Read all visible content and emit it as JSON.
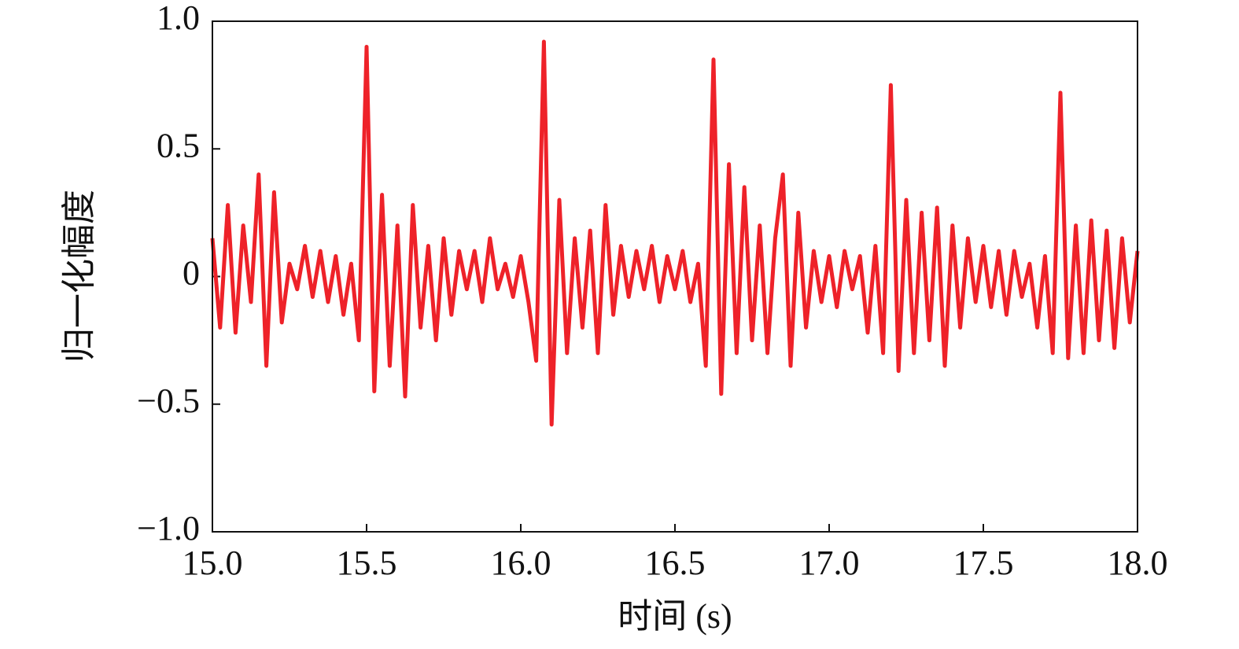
{
  "chart_data": {
    "type": "line",
    "xlabel": "时间 (s)",
    "ylabel": "归一化幅度",
    "x": [
      15.0,
      15.025,
      15.05,
      15.075,
      15.1,
      15.125,
      15.15,
      15.175,
      15.2,
      15.225,
      15.25,
      15.275,
      15.3,
      15.325,
      15.35,
      15.375,
      15.4,
      15.425,
      15.45,
      15.475,
      15.5,
      15.525,
      15.55,
      15.575,
      15.6,
      15.625,
      15.65,
      15.675,
      15.7,
      15.725,
      15.75,
      15.775,
      15.8,
      15.825,
      15.85,
      15.875,
      15.9,
      15.925,
      15.95,
      15.975,
      16.0,
      16.025,
      16.05,
      16.075,
      16.1,
      16.125,
      16.15,
      16.175,
      16.2,
      16.225,
      16.25,
      16.275,
      16.3,
      16.325,
      16.35,
      16.375,
      16.4,
      16.425,
      16.45,
      16.475,
      16.5,
      16.525,
      16.55,
      16.575,
      16.6,
      16.625,
      16.65,
      16.675,
      16.7,
      16.725,
      16.75,
      16.775,
      16.8,
      16.825,
      16.85,
      16.875,
      16.9,
      16.925,
      16.95,
      16.975,
      17.0,
      17.025,
      17.05,
      17.075,
      17.1,
      17.125,
      17.15,
      17.175,
      17.2,
      17.225,
      17.25,
      17.275,
      17.3,
      17.325,
      17.35,
      17.375,
      17.4,
      17.425,
      17.45,
      17.475,
      17.5,
      17.525,
      17.55,
      17.575,
      17.6,
      17.625,
      17.65,
      17.675,
      17.7,
      17.725,
      17.75,
      17.775,
      17.8,
      17.825,
      17.85,
      17.875,
      17.9,
      17.925,
      17.95,
      17.975,
      18.0
    ],
    "series": [
      {
        "color": "#ee2229",
        "values": [
          0.15,
          -0.2,
          0.28,
          -0.22,
          0.2,
          -0.1,
          0.4,
          -0.35,
          0.33,
          -0.18,
          0.05,
          -0.05,
          0.12,
          -0.08,
          0.1,
          -0.1,
          0.08,
          -0.15,
          0.05,
          -0.25,
          0.9,
          -0.45,
          0.32,
          -0.35,
          0.2,
          -0.47,
          0.28,
          -0.2,
          0.12,
          -0.25,
          0.15,
          -0.15,
          0.1,
          -0.05,
          0.1,
          -0.1,
          0.15,
          -0.05,
          0.05,
          -0.08,
          0.08,
          -0.1,
          -0.33,
          0.92,
          -0.58,
          0.3,
          -0.3,
          0.15,
          -0.2,
          0.18,
          -0.3,
          0.28,
          -0.15,
          0.12,
          -0.08,
          0.1,
          -0.05,
          0.12,
          -0.1,
          0.08,
          -0.05,
          0.1,
          -0.1,
          0.05,
          -0.35,
          0.85,
          -0.46,
          0.44,
          -0.3,
          0.35,
          -0.25,
          0.2,
          -0.3,
          0.15,
          0.4,
          -0.35,
          0.25,
          -0.2,
          0.1,
          -0.1,
          0.08,
          -0.12,
          0.1,
          -0.05,
          0.08,
          -0.22,
          0.12,
          -0.3,
          0.75,
          -0.37,
          0.3,
          -0.3,
          0.25,
          -0.25,
          0.27,
          -0.35,
          0.2,
          -0.2,
          0.15,
          -0.1,
          0.12,
          -0.12,
          0.1,
          -0.15,
          0.1,
          -0.08,
          0.05,
          -0.2,
          0.08,
          -0.3,
          0.72,
          -0.32,
          0.2,
          -0.3,
          0.22,
          -0.25,
          0.18,
          -0.28,
          0.15,
          -0.18,
          0.1
        ]
      }
    ],
    "xlim": [
      15,
      18
    ],
    "xticks": [
      {
        "value": 15,
        "label": "15.0"
      },
      15.5,
      {
        "value": 16,
        "label": "16.0"
      },
      16.5,
      {
        "value": 17,
        "label": "17.0"
      },
      17.5,
      {
        "value": 18,
        "label": "18.0"
      }
    ],
    "ylim": [
      -1,
      1
    ],
    "yticks": [
      {
        "value": -1,
        "label": "−1.0"
      },
      {
        "value": -0.5,
        "label": "−0.5"
      },
      0,
      0.5,
      {
        "value": 1,
        "label": "1.0"
      }
    ]
  }
}
